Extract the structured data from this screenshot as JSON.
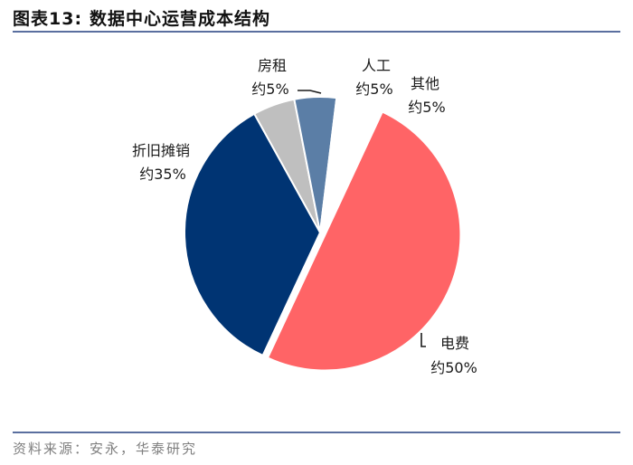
{
  "header": {
    "figure_no": "图表13:",
    "title": "数据中心运营成本结构"
  },
  "source": "资料来源：安永，华泰研究",
  "chart_data": {
    "type": "pie",
    "title": "数据中心运营成本结构",
    "start_category": "电费",
    "slices": [
      {
        "name": "电费",
        "value": 50,
        "label": "约50%",
        "color": "#ff6466",
        "exploded": true
      },
      {
        "name": "折旧摊销",
        "value": 35,
        "label": "约35%",
        "color": "#003473",
        "exploded": false
      },
      {
        "name": "房租",
        "value": 5,
        "label": "约5%",
        "color": "#bfbfbf",
        "exploded": false
      },
      {
        "name": "人工",
        "value": 5,
        "label": "约5%",
        "color": "#5b7ea6",
        "exploded": false
      },
      {
        "name": "其他",
        "value": 5,
        "label": "约5%",
        "color": "#ffffff",
        "exploded": false
      }
    ]
  }
}
